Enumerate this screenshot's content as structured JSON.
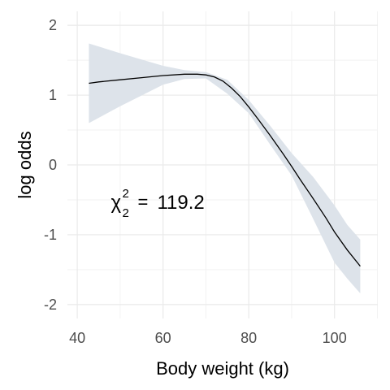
{
  "chart_data": {
    "type": "line",
    "xlabel": "Body weight (kg)",
    "ylabel": "log odds",
    "xlim": [
      37.7,
      110.1
    ],
    "ylim": [
      -2.2,
      2.2
    ],
    "x_ticks": [
      40,
      60,
      80,
      100
    ],
    "x_minor": [
      50,
      70,
      90,
      110
    ],
    "y_ticks": [
      -2,
      -1,
      0,
      1,
      2
    ],
    "y_minor": [
      -1.5,
      -0.5,
      0.5,
      1.5
    ],
    "grid": true,
    "annotation": {
      "symbol": "χ",
      "superscript": "2",
      "subscript": "2",
      "equals": "=",
      "value": "119.2",
      "x": 52,
      "y": -0.5
    },
    "series": [
      {
        "color": "#000000",
        "x": [
          42.7,
          45,
          50,
          55,
          60,
          65,
          68,
          70,
          72,
          74,
          76,
          78,
          80,
          82,
          85,
          88,
          90,
          92,
          95,
          98,
          100,
          103,
          106
        ],
        "y": [
          1.17,
          1.19,
          1.22,
          1.25,
          1.28,
          1.3,
          1.3,
          1.29,
          1.26,
          1.2,
          1.1,
          0.98,
          0.83,
          0.67,
          0.42,
          0.16,
          -0.02,
          -0.21,
          -0.48,
          -0.76,
          -0.96,
          -1.22,
          -1.45
        ]
      }
    ],
    "confidence_band": {
      "color": "#dde3ea",
      "x": [
        42.7,
        50,
        60,
        65,
        70,
        75,
        80,
        85,
        90,
        95,
        100,
        103,
        106
      ],
      "upper": [
        1.74,
        1.6,
        1.42,
        1.36,
        1.33,
        1.22,
        0.93,
        0.56,
        0.17,
        -0.17,
        -0.58,
        -0.86,
        -1.07
      ],
      "lower": [
        0.6,
        0.84,
        1.15,
        1.23,
        1.24,
        1.02,
        0.74,
        0.29,
        -0.15,
        -0.77,
        -1.4,
        -1.63,
        -1.84
      ]
    }
  }
}
